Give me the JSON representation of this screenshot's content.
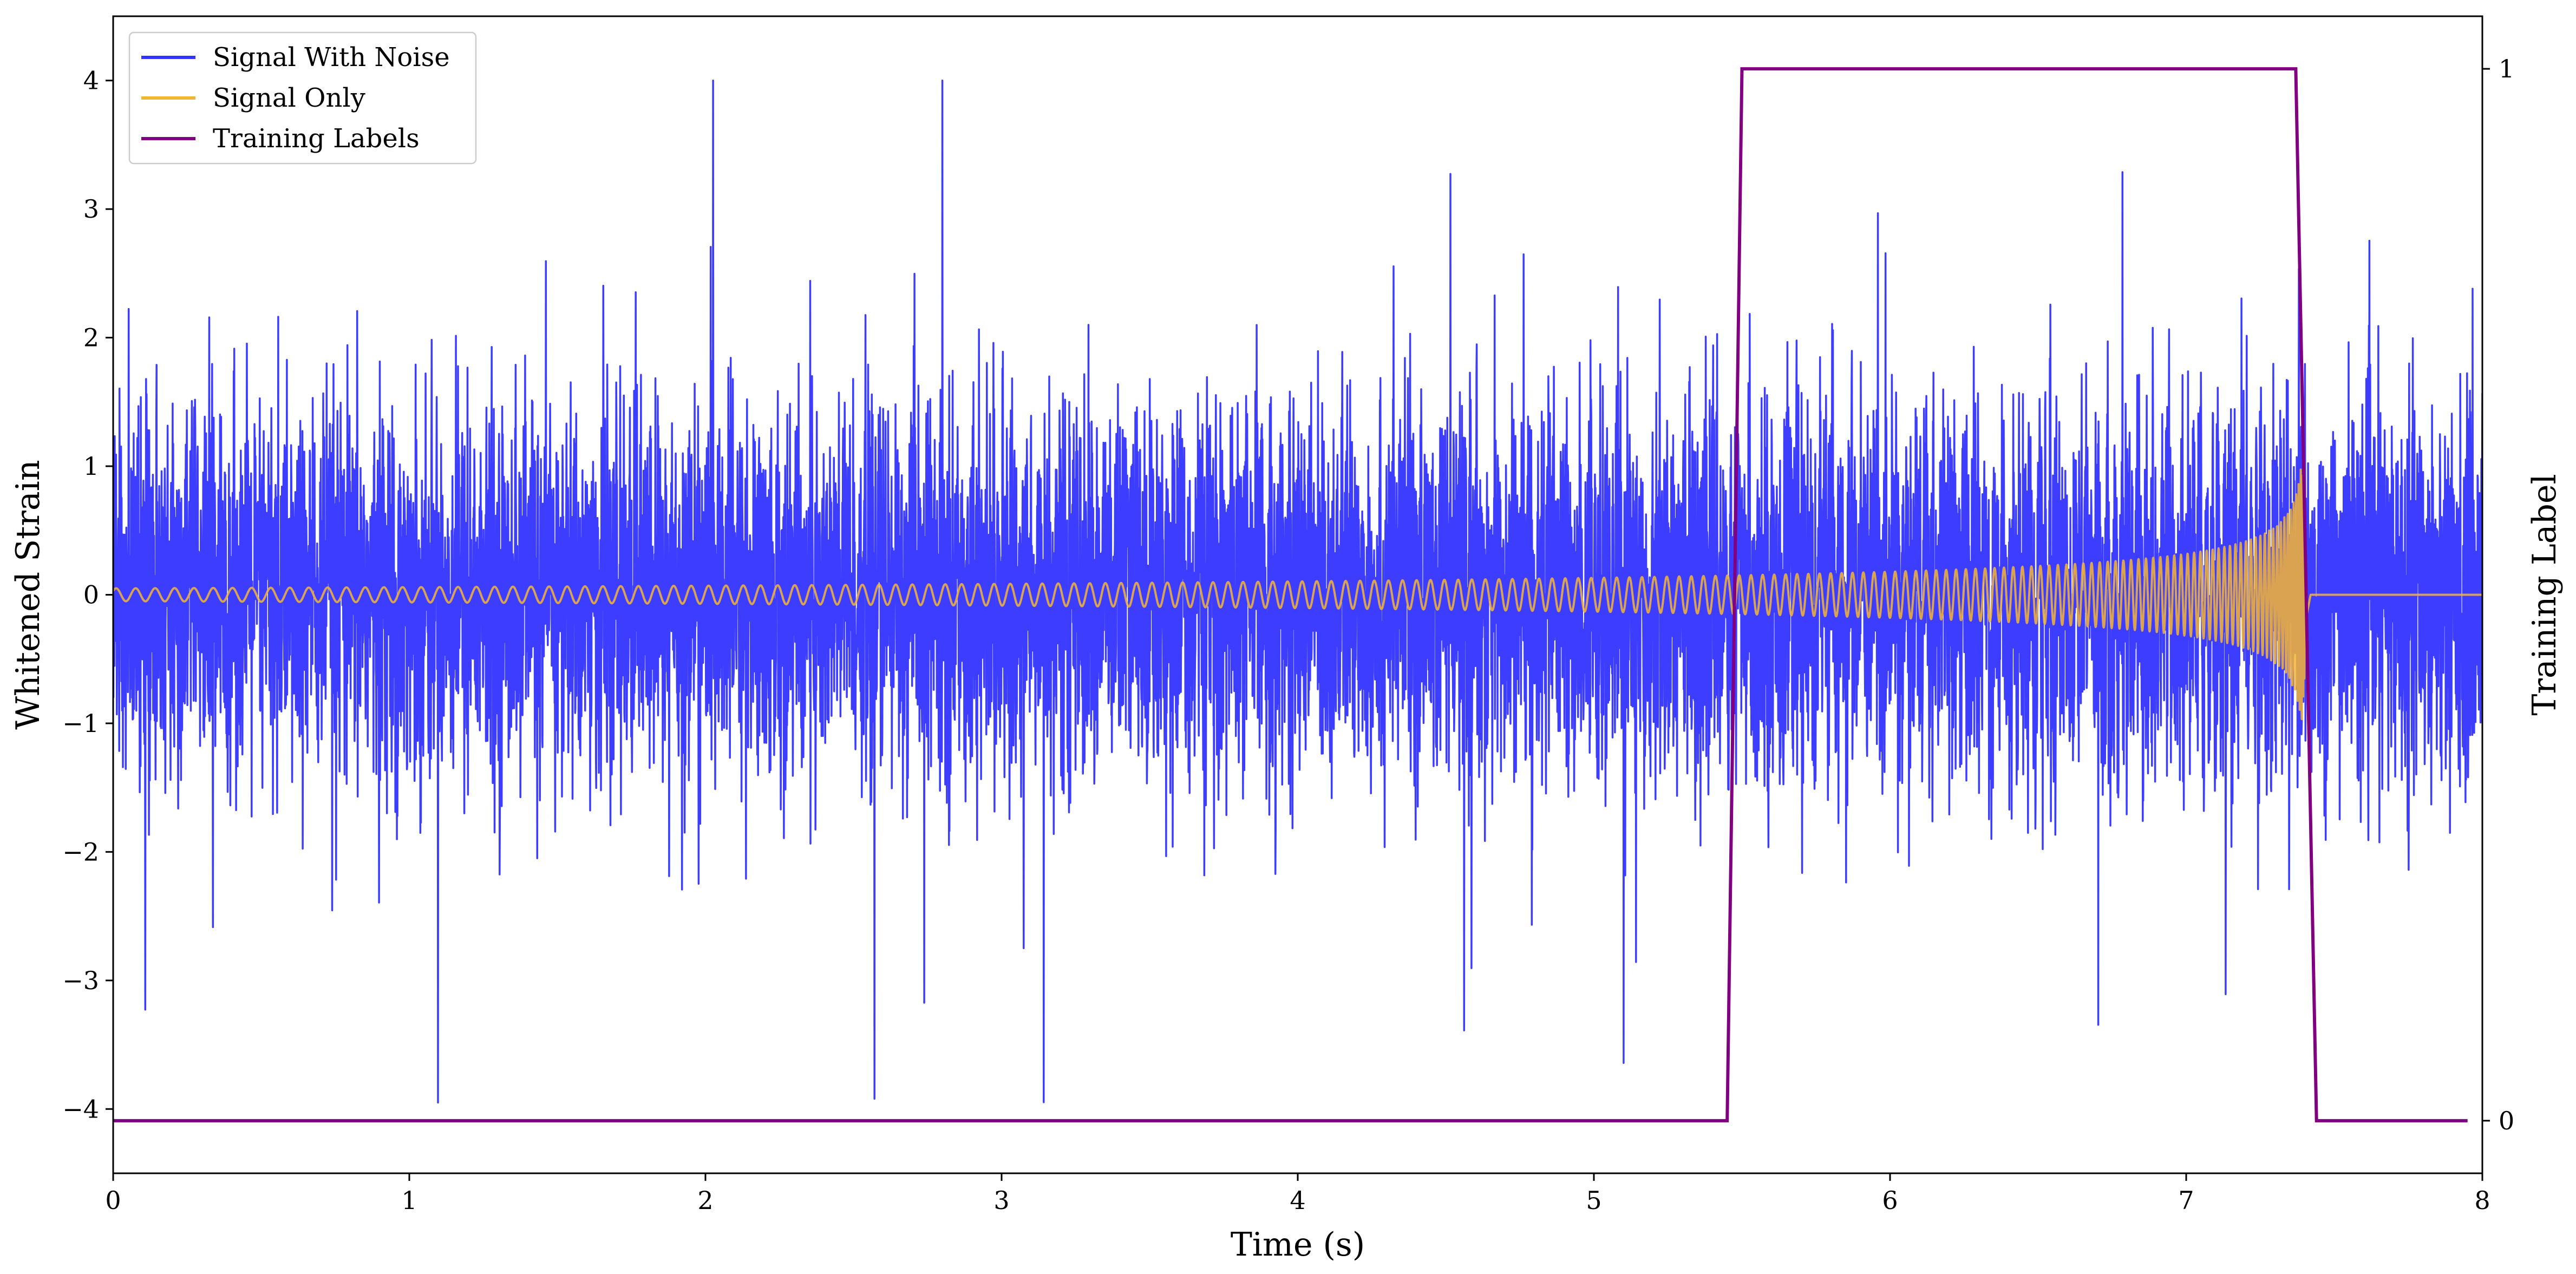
{
  "chart_data": {
    "type": "line",
    "xlabel": "Time (s)",
    "ylabel": "Whitened Strain",
    "y2label": "Training Label",
    "xlim": [
      0,
      8
    ],
    "ylim": [
      -4.5,
      4.5
    ],
    "y2lim": [
      -0.05,
      1.05
    ],
    "x_ticks": [
      0,
      1,
      2,
      3,
      4,
      5,
      6,
      7,
      8
    ],
    "y_ticks": [
      -4,
      -3,
      -2,
      -1,
      0,
      1,
      2,
      3,
      4
    ],
    "y2_ticks": [
      0,
      1
    ],
    "x_tick_labels": [
      "0",
      "1",
      "2",
      "3",
      "4",
      "5",
      "6",
      "7",
      "8"
    ],
    "y_tick_labels": [
      "−4",
      "−3",
      "−2",
      "−1",
      "0",
      "1",
      "2",
      "3",
      "4"
    ],
    "y2_tick_labels": [
      "0",
      "1"
    ],
    "legend_position": "top-left",
    "grid": false,
    "series": [
      {
        "name": "Signal With Noise",
        "color": "#3333ff",
        "axis": "left",
        "description_of_trend": "dense noise centered at 0 with typical amplitude ~±1 and spikes to about ±4",
        "peak_max": 4.0,
        "peak_min": -3.95
      },
      {
        "name": "Signal Only",
        "color": "#f5b533",
        "axis": "left",
        "start_amplitude": 0.05,
        "peak_amplitude": 1.05,
        "peak_time": 7.39,
        "end_time": 7.42
      },
      {
        "name": "Training Labels",
        "color": "#800080",
        "axis": "right",
        "x": [
          0,
          5.45,
          5.5,
          7.37,
          7.44,
          7.95
        ],
        "y": [
          0,
          0,
          1,
          1,
          0,
          0
        ]
      }
    ]
  }
}
